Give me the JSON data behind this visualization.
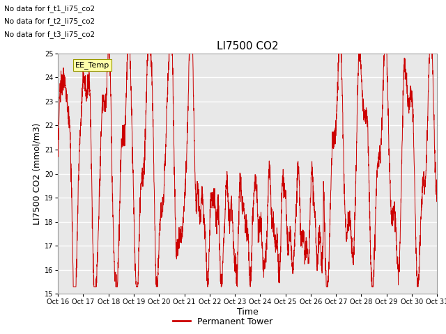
{
  "title": "LI7500 CO2",
  "ylabel": "LI7500 CO2 (mmol/m3)",
  "xlabel": "Time",
  "ylim": [
    15.0,
    25.0
  ],
  "yticks": [
    15.0,
    16.0,
    17.0,
    18.0,
    19.0,
    20.0,
    21.0,
    22.0,
    23.0,
    24.0,
    25.0
  ],
  "xtick_labels": [
    "Oct 16",
    "Oct 17",
    "Oct 18",
    "Oct 19",
    "Oct 20",
    "Oct 21",
    "Oct 22",
    "Oct 23",
    "Oct 24",
    "Oct 25",
    "Oct 26",
    "Oct 27",
    "Oct 28",
    "Oct 29",
    "Oct 30",
    "Oct 31"
  ],
  "no_data_msgs": [
    "No data for f_t1_li75_co2",
    "No data for f_t2_li75_co2",
    "No data for f_t3_li75_co2"
  ],
  "tooltip_text": "EE_Temp",
  "legend_label": "Permanent Tower",
  "line_color": "#cc0000",
  "bg_color": "#e8e8e8",
  "grid_color": "#ffffff",
  "title_fontsize": 11,
  "label_fontsize": 9,
  "tick_fontsize": 8
}
